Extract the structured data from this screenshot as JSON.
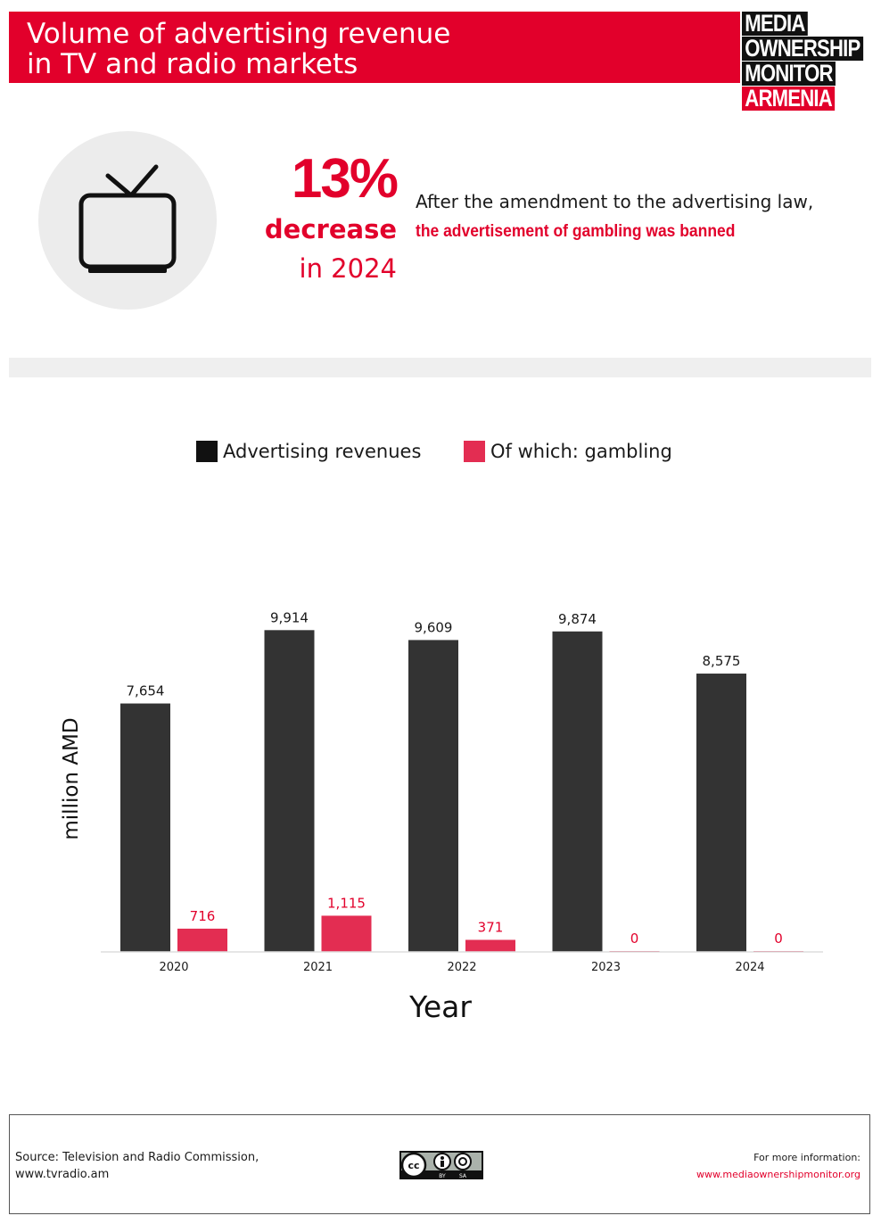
{
  "header": {
    "title": "Volume of advertising revenue\nin TV and radio markets",
    "logo_lines": [
      "MEDIA",
      "OWNERSHIP",
      "MONITOR",
      "ARMENIA"
    ],
    "brand_color": "#e2002b"
  },
  "highlight": {
    "icon": "tv-icon",
    "value": "13%",
    "label": "decrease",
    "year": "in 2024",
    "note_line1": "After the amendment to the advertising law,",
    "note_line2": "the advertisement of gambling was banned"
  },
  "chart_data": {
    "type": "bar",
    "categories": [
      "2020",
      "2021",
      "2022",
      "2023",
      "2024"
    ],
    "series": [
      {
        "name": "Advertising revenues",
        "values": [
          7654,
          9914,
          9609,
          9874,
          8575
        ],
        "labels": [
          "7,654",
          "9,914",
          "9,609",
          "9,874",
          "8,575"
        ],
        "color": "#333333"
      },
      {
        "name": "Of which: gambling",
        "values": [
          716,
          1115,
          371,
          0,
          0
        ],
        "labels": [
          "716",
          "1,115",
          "371",
          "0",
          "0"
        ],
        "color": "#e32d52"
      }
    ],
    "xlabel": "Year",
    "ylabel": "million AMD",
    "ylim": [
      0,
      10500
    ],
    "grid": false,
    "legend_position": "top"
  },
  "footer": {
    "source": "Source: Television and Radio Commission,\nwww.tvradio.am",
    "license_icon": "cc-by-sa-icon",
    "license_text": [
      "cc",
      "BY",
      "SA"
    ],
    "more_info_label": "For more information:",
    "more_info_url": "www.mediaownershipmonitor.org"
  }
}
